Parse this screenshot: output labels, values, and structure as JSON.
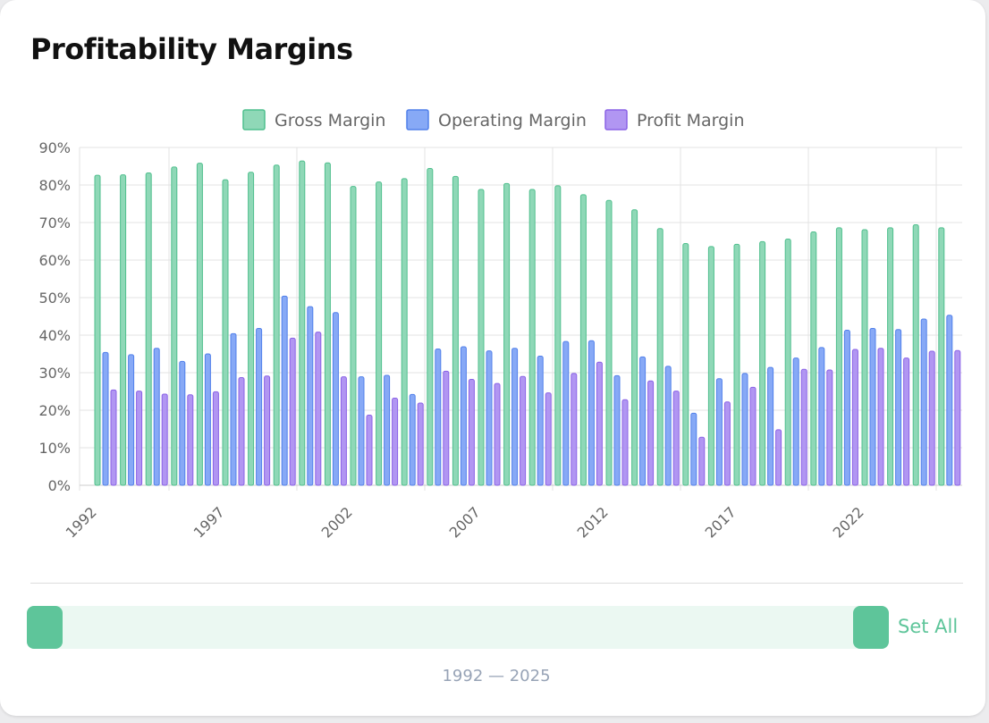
{
  "card": {
    "title": "Profitability Margins"
  },
  "range": {
    "set_all_label": "Set All",
    "label": "1992 — 2025"
  },
  "colors": {
    "gross_fill": "#8fd8b7",
    "gross_stroke": "#4fbf8d",
    "operating_fill": "#87a9f6",
    "operating_stroke": "#5180ea",
    "profit_fill": "#b196f2",
    "profit_stroke": "#8a62e6",
    "accent": "#5ec59a"
  },
  "chart_data": {
    "type": "bar",
    "title": "",
    "xlabel": "",
    "ylabel": "",
    "ylim": [
      0,
      90
    ],
    "y_ticks": [
      "0%",
      "10%",
      "20%",
      "30%",
      "40%",
      "50%",
      "60%",
      "70%",
      "80%",
      "90%"
    ],
    "x_tick_labels": [
      "1992",
      "1997",
      "2002",
      "2007",
      "2012",
      "2017",
      "2022"
    ],
    "grid": true,
    "legend_position": "top-center",
    "categories": [
      1992,
      1993,
      1994,
      1995,
      1996,
      1997,
      1998,
      1999,
      2000,
      2001,
      2002,
      2003,
      2004,
      2005,
      2006,
      2007,
      2008,
      2009,
      2010,
      2011,
      2012,
      2013,
      2014,
      2015,
      2016,
      2017,
      2018,
      2019,
      2020,
      2021,
      2022,
      2023,
      2024,
      2025
    ],
    "series": [
      {
        "name": "Gross Margin",
        "values": [
          82.6,
          82.7,
          83.2,
          84.8,
          85.8,
          81.4,
          83.4,
          85.3,
          86.4,
          85.9,
          79.6,
          80.8,
          81.7,
          84.4,
          82.3,
          78.8,
          80.4,
          78.8,
          79.8,
          77.4,
          75.9,
          73.4,
          68.4,
          64.4,
          63.6,
          64.2,
          64.9,
          65.6,
          67.5,
          68.6,
          68.1,
          68.6,
          69.4,
          68.6
        ]
      },
      {
        "name": "Operating Margin",
        "values": [
          35.4,
          34.8,
          36.5,
          33.0,
          35.0,
          40.4,
          41.8,
          50.4,
          47.6,
          46.0,
          28.9,
          29.3,
          24.2,
          36.3,
          36.9,
          35.8,
          36.5,
          34.4,
          38.3,
          38.5,
          29.2,
          34.2,
          31.7,
          19.2,
          28.4,
          29.8,
          31.4,
          33.9,
          36.7,
          41.3,
          41.8,
          41.5,
          44.3,
          45.3
        ]
      },
      {
        "name": "Profit Margin",
        "values": [
          25.4,
          25.1,
          24.3,
          24.1,
          24.9,
          28.7,
          29.1,
          39.2,
          40.8,
          28.9,
          18.7,
          23.2,
          21.9,
          30.4,
          28.2,
          27.1,
          29.0,
          24.6,
          29.8,
          32.8,
          22.8,
          27.8,
          25.1,
          12.8,
          22.2,
          26.1,
          14.8,
          30.9,
          30.7,
          36.2,
          36.5,
          33.9,
          35.7,
          35.9
        ]
      }
    ]
  }
}
